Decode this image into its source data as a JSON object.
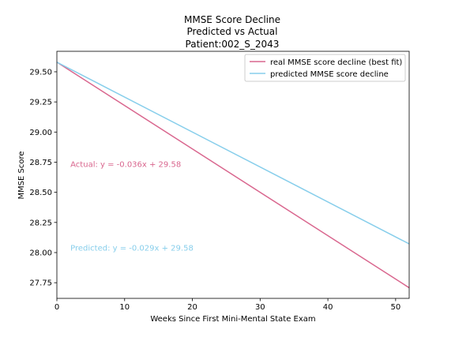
{
  "chart_data": {
    "type": "line",
    "title": [
      "MMSE Score Decline",
      "Predicted vs Actual",
      "Patient:002_S_2043"
    ],
    "xlabel": "Weeks Since First Mini-Mental State Exam",
    "ylabel": "MMSE Score",
    "xlim": [
      0,
      52
    ],
    "ylim": [
      27.62,
      29.67
    ],
    "x_ticks": [
      0,
      10,
      20,
      30,
      40,
      50
    ],
    "x_tick_labels": [
      "0",
      "10",
      "20",
      "30",
      "40",
      "50"
    ],
    "y_ticks": [
      27.75,
      28.0,
      28.25,
      28.5,
      28.75,
      29.0,
      29.25,
      29.5
    ],
    "y_tick_labels": [
      "27.75",
      "28.00",
      "28.25",
      "28.50",
      "28.75",
      "29.00",
      "29.25",
      "29.50"
    ],
    "grid": false,
    "legend": "top-right",
    "series": [
      {
        "name": "real MMSE score decline (best fit)",
        "color": "#d9668e",
        "x": [
          0,
          52
        ],
        "y": [
          29.58,
          27.708
        ]
      },
      {
        "name": "predicted MMSE score decline",
        "color": "#87ceeb",
        "x": [
          0,
          52
        ],
        "y": [
          29.58,
          28.072
        ]
      }
    ],
    "annotations": [
      {
        "text": "Actual: y = -0.036x + 29.58",
        "x": 2,
        "y": 28.735,
        "color": "#d9668e"
      },
      {
        "text": "Predicted: y = -0.029x + 29.58",
        "x": 2,
        "y": 28.04,
        "color": "#87ceeb"
      }
    ]
  }
}
